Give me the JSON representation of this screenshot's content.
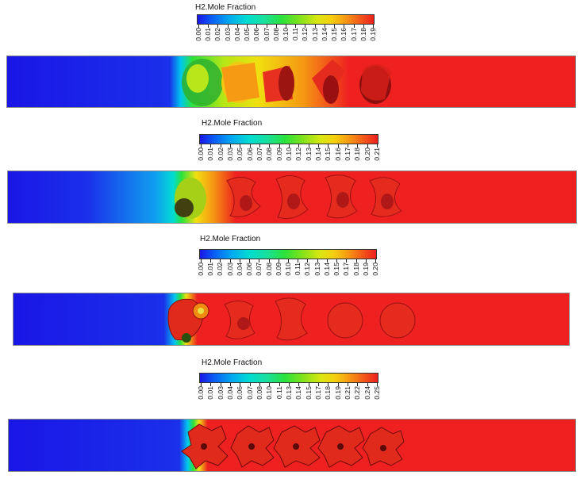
{
  "panels": [
    {
      "legend_title": "H2.Mole Fraction",
      "ticks": [
        "0.00",
        "0.01",
        "0.02",
        "0.03",
        "0.04",
        "0.05",
        "0.06",
        "0.07",
        "0.08",
        "0.10",
        "0.11",
        "0.12",
        "0.13",
        "0.14",
        "0.15",
        "0.16",
        "0.17",
        "0.18",
        "0.19"
      ]
    },
    {
      "legend_title": "H2.Mole Fraction",
      "ticks": [
        "0.00",
        "0.01",
        "0.02",
        "0.03",
        "0.05",
        "0.06",
        "0.07",
        "0.08",
        "0.09",
        "0.10",
        "0.12",
        "0.13",
        "0.14",
        "0.15",
        "0.16",
        "0.17",
        "0.18",
        "0.20",
        "0.21"
      ]
    },
    {
      "legend_title": "H2.Mole Fraction",
      "ticks": [
        "0.00",
        "0.01",
        "0.02",
        "0.03",
        "0.04",
        "0.06",
        "0.07",
        "0.08",
        "0.09",
        "0.10",
        "0.11",
        "0.12",
        "0.13",
        "0.14",
        "0.15",
        "0.17",
        "0.18",
        "0.19",
        "0.20"
      ]
    },
    {
      "legend_title": "H2.Mole Fraction",
      "ticks": [
        "0.00",
        "0.01",
        "0.03",
        "0.04",
        "0.06",
        "0.07",
        "0.08",
        "0.10",
        "0.11",
        "0.13",
        "0.14",
        "0.15",
        "0.17",
        "0.18",
        "0.19",
        "0.21",
        "0.22",
        "0.24",
        "0.25"
      ]
    }
  ],
  "colors": {
    "low": "#1a16e6",
    "cyan": "#00c8ee",
    "green": "#2be23a",
    "yellow": "#f0e010",
    "orange": "#f69813",
    "high": "#ee2020",
    "shadow": "#7a0a0a"
  }
}
